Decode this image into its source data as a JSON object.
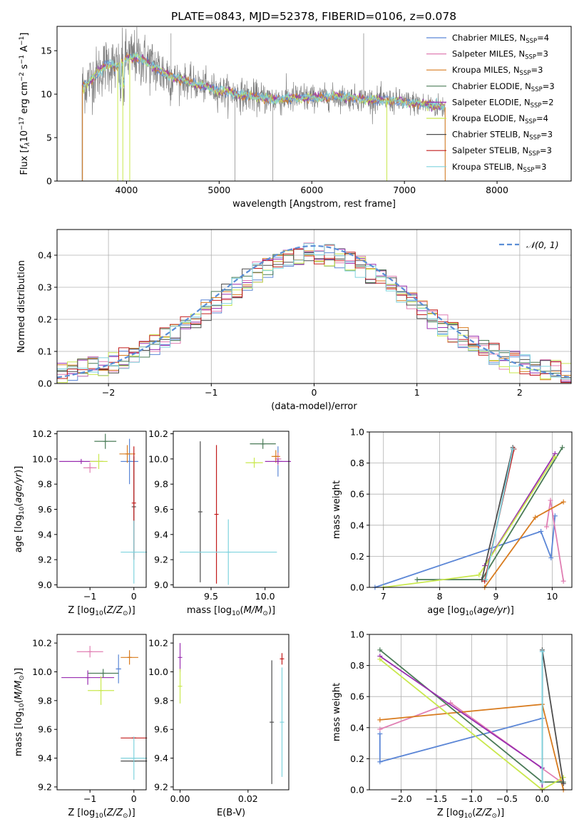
{
  "figure": {
    "title": "PLATE=0843, MJD=52378, FIBERID=0106, z=0.078"
  },
  "model_colors": {
    "Chabrier MILES": "#5b86d6",
    "Salpeter MILES": "#e07fb3",
    "Kroupa MILES": "#d87b1e",
    "Chabrier ELODIE": "#4a7b57",
    "Salpeter ELODIE": "#9a2fb0",
    "Kroupa ELODIE": "#c9e84e",
    "Chabrier STELIB": "#4d4d4d",
    "Salpeter STELIB": "#c21b1b",
    "Kroupa STELIB": "#7fd3de",
    "data": "#808080",
    "normal_fit": "#5b8ed6"
  },
  "chart_data": [
    {
      "id": "spectrum",
      "type": "line",
      "title": "PLATE=0843, MJD=52378, FIBERID=0106, z=0.078",
      "xlabel": "wavelength [Angstrom, rest frame]",
      "ylabel": "Flux [f_λ 10^-17 erg cm^-2 s^-1 A^-1]",
      "xlim": [
        3250,
        8800
      ],
      "ylim": [
        0,
        17.8
      ],
      "xticks": [
        4000,
        5000,
        6000,
        7000,
        8000
      ],
      "yticks": [
        0,
        5,
        10,
        15
      ],
      "grid": false,
      "legend_position": "top-right",
      "legend": [
        {
          "label": "Chabrier MILES, N",
          "sub": "SSP",
          "suffix": "=4",
          "model": "Chabrier MILES"
        },
        {
          "label": "Salpeter MILES, N",
          "sub": "SSP",
          "suffix": "=3",
          "model": "Salpeter MILES"
        },
        {
          "label": "Kroupa MILES, N",
          "sub": "SSP",
          "suffix": "=3",
          "model": "Kroupa MILES"
        },
        {
          "label": "Chabrier ELODIE, N",
          "sub": "SSP",
          "suffix": "=3",
          "model": "Chabrier ELODIE"
        },
        {
          "label": "Salpeter ELODIE, N",
          "sub": "SSP",
          "suffix": "=2",
          "model": "Salpeter ELODIE"
        },
        {
          "label": "Kroupa ELODIE, N",
          "sub": "SSP",
          "suffix": "=4",
          "model": "Kroupa ELODIE"
        },
        {
          "label": "Chabrier STELIB, N",
          "sub": "SSP",
          "suffix": "=3",
          "model": "Chabrier STELIB"
        },
        {
          "label": "Salpeter STELIB, N",
          "sub": "SSP",
          "suffix": "=3",
          "model": "Salpeter STELIB"
        },
        {
          "label": "Kroupa STELIB, N",
          "sub": "SSP",
          "suffix": "=3",
          "model": "Kroupa STELIB"
        }
      ],
      "continuum_knots": {
        "wavelength": [
          3520,
          3600,
          3700,
          3800,
          3900,
          4000,
          4100,
          4200,
          4300,
          4400,
          4500,
          4700,
          5000,
          5300,
          5600,
          6000,
          6300,
          6600,
          7000,
          7300,
          7440
        ],
        "flux": [
          10.8,
          11.5,
          12.5,
          13.6,
          13.0,
          14.2,
          14.3,
          13.8,
          13.2,
          12.4,
          12.0,
          11.3,
          10.4,
          9.8,
          9.4,
          9.6,
          9.7,
          9.4,
          9.1,
          8.7,
          8.5
        ]
      }
    },
    {
      "id": "residuals",
      "type": "step",
      "xlabel": "(data-model)/error",
      "ylabel": "Normed distribution",
      "xlim": [
        -2.5,
        2.5
      ],
      "ylim": [
        0,
        0.48
      ],
      "xticks": [
        -2,
        -1,
        0,
        1,
        2
      ],
      "yticks": [
        0.0,
        0.1,
        0.2,
        0.3,
        0.4
      ],
      "grid": true,
      "legend_position": "top-right",
      "legend_label": "𝒩(0, 1)",
      "bin_width": 0.1
    },
    {
      "id": "z_age",
      "type": "errorbar",
      "xlabel": "Z [log10(Z/Z⊙)]",
      "ylabel": "age [log10(age/yr)]",
      "xlim": [
        -1.75,
        0.28
      ],
      "ylim": [
        8.98,
        10.22
      ],
      "xticks": [
        -1,
        0
      ],
      "yticks": [
        9.0,
        9.2,
        9.4,
        9.6,
        9.8,
        10.0,
        10.2
      ],
      "points": [
        {
          "model": "Chabrier MILES",
          "x": -0.1,
          "xerr": 0.2,
          "y": 9.98,
          "yerr": 0.18
        },
        {
          "model": "Salpeter MILES",
          "x": -1.0,
          "xerr": 0.15,
          "y": 9.93,
          "yerr": 0.04
        },
        {
          "model": "Kroupa MILES",
          "x": -0.15,
          "xerr": 0.18,
          "y": 10.04,
          "yerr": 0.07
        },
        {
          "model": "Chabrier ELODIE",
          "x": -0.65,
          "xerr": 0.25,
          "y": 10.14,
          "yerr": 0.06
        },
        {
          "model": "Salpeter ELODIE",
          "x": -1.2,
          "xerr": 0.5,
          "y": 9.98,
          "yerr": 0.02
        },
        {
          "model": "Kroupa ELODIE",
          "x": -0.8,
          "xerr": 0.2,
          "y": 9.98,
          "yerr": 0.06
        },
        {
          "model": "Chabrier STELIB",
          "x": 0.0,
          "xerr": 0.0,
          "y": 9.62,
          "yerr": 0.4
        },
        {
          "model": "Salpeter STELIB",
          "x": 0.0,
          "xerr": 0.0,
          "y": 9.65,
          "yerr": 0.45
        },
        {
          "model": "Kroupa STELIB",
          "x": 0.0,
          "xerr": 0.3,
          "y": 9.26,
          "yerr": 0.25
        }
      ]
    },
    {
      "id": "mass_age",
      "type": "errorbar",
      "xlabel": "mass [log10(M/M⊙)]",
      "ylabel": "",
      "xlim": [
        9.15,
        10.22
      ],
      "ylim": [
        8.98,
        10.22
      ],
      "xticks": [
        9.5,
        10.0
      ],
      "yticks": [
        9.0,
        9.2,
        9.4,
        9.6,
        9.8,
        10.0,
        10.2
      ],
      "points": [
        {
          "model": "Chabrier MILES",
          "x": 10.12,
          "xerr": 0.04,
          "y": 9.98,
          "yerr": 0.12
        },
        {
          "model": "Salpeter MILES",
          "x": 10.12,
          "xerr": 0.03,
          "y": 10.0,
          "yerr": 0.05
        },
        {
          "model": "Kroupa MILES",
          "x": 10.1,
          "xerr": 0.04,
          "y": 10.02,
          "yerr": 0.05
        },
        {
          "model": "Chabrier ELODIE",
          "x": 9.98,
          "xerr": 0.12,
          "y": 10.12,
          "yerr": 0.04
        },
        {
          "model": "Salpeter ELODIE",
          "x": 10.12,
          "xerr": 0.12,
          "y": 9.98,
          "yerr": 0.02
        },
        {
          "model": "Kroupa ELODIE",
          "x": 9.9,
          "xerr": 0.08,
          "y": 9.97,
          "yerr": 0.04
        },
        {
          "model": "Chabrier STELIB",
          "x": 9.4,
          "xerr": 0.0,
          "y": 9.58,
          "yerr": 0.56
        },
        {
          "model": "Salpeter STELIB",
          "x": 9.55,
          "xerr": 0.0,
          "y": 9.56,
          "yerr": 0.55
        },
        {
          "model": "Kroupa STELIB",
          "x": 9.66,
          "xerr": 0.45,
          "y": 9.26,
          "yerr": 0.26
        }
      ]
    },
    {
      "id": "age_weight",
      "type": "line",
      "xlabel": "age [log10(age/yr)]",
      "ylabel": "mass weight",
      "xlim": [
        6.75,
        10.35
      ],
      "ylim": [
        0.0,
        1.0
      ],
      "xticks": [
        7,
        8,
        9,
        10
      ],
      "yticks": [
        0.0,
        0.2,
        0.4,
        0.6,
        0.8,
        1.0
      ],
      "grid": true,
      "series": [
        {
          "model": "Chabrier MILES",
          "x": [
            6.85,
            9.8,
            9.98,
            10.05
          ],
          "y": [
            0.0,
            0.36,
            0.19,
            0.46
          ]
        },
        {
          "model": "Salpeter MILES",
          "x": [
            9.9,
            9.97,
            10.2
          ],
          "y": [
            0.39,
            0.56,
            0.04
          ]
        },
        {
          "model": "Kroupa MILES",
          "x": [
            8.8,
            9.7,
            10.2
          ],
          "y": [
            0.0,
            0.45,
            0.55
          ]
        },
        {
          "model": "Chabrier ELODIE",
          "x": [
            7.6,
            8.75,
            10.18
          ],
          "y": [
            0.05,
            0.05,
            0.9
          ]
        },
        {
          "model": "Salpeter ELODIE",
          "x": [
            8.8,
            10.05
          ],
          "y": [
            0.14,
            0.86
          ]
        },
        {
          "model": "Kroupa ELODIE",
          "x": [
            7.0,
            8.7,
            10.05
          ],
          "y": [
            0.0,
            0.08,
            0.84
          ]
        },
        {
          "model": "Chabrier STELIB",
          "x": [
            8.75,
            9.3
          ],
          "y": [
            0.05,
            0.9
          ]
        },
        {
          "model": "Salpeter STELIB",
          "x": [
            8.8,
            9.32
          ],
          "y": [
            0.04,
            0.89
          ]
        },
        {
          "model": "Kroupa STELIB",
          "x": [
            8.82,
            9.3
          ],
          "y": [
            0.05,
            0.89
          ]
        }
      ]
    },
    {
      "id": "z_mass",
      "type": "errorbar",
      "xlabel": "Z [log10(Z/Z⊙)]",
      "ylabel": "mass [log10(M/M⊙)]",
      "xlim": [
        -1.75,
        0.28
      ],
      "ylim": [
        9.18,
        10.26
      ],
      "xticks": [
        -1,
        0
      ],
      "yticks": [
        9.2,
        9.4,
        9.6,
        9.8,
        10.0,
        10.2
      ],
      "points": [
        {
          "model": "Chabrier MILES",
          "x": -0.35,
          "xerr": 0.06,
          "y": 10.02,
          "yerr": 0.1
        },
        {
          "model": "Salpeter MILES",
          "x": -1.0,
          "xerr": 0.3,
          "y": 10.14,
          "yerr": 0.04
        },
        {
          "model": "Kroupa MILES",
          "x": -0.1,
          "xerr": 0.2,
          "y": 10.1,
          "yerr": 0.05
        },
        {
          "model": "Chabrier ELODIE",
          "x": -0.7,
          "xerr": 0.35,
          "y": 9.99,
          "yerr": 0.03
        },
        {
          "model": "Salpeter ELODIE",
          "x": -1.05,
          "xerr": 0.6,
          "y": 9.96,
          "yerr": 0.05
        },
        {
          "model": "Kroupa ELODIE",
          "x": -0.75,
          "xerr": 0.3,
          "y": 9.87,
          "yerr": 0.1
        },
        {
          "model": "Chabrier STELIB",
          "x": 0.0,
          "xerr": 0.3,
          "y": 9.38,
          "yerr": 0.0
        },
        {
          "model": "Salpeter STELIB",
          "x": 0.0,
          "xerr": 0.3,
          "y": 9.54,
          "yerr": 0.0
        },
        {
          "model": "Kroupa STELIB",
          "x": 0.0,
          "xerr": 0.3,
          "y": 9.4,
          "yerr": 0.15
        }
      ]
    },
    {
      "id": "ebv_mass",
      "type": "errorbar",
      "xlabel": "E(B-V)",
      "ylabel": "",
      "xlim": [
        -0.002,
        0.032
      ],
      "ylim": [
        9.18,
        10.26
      ],
      "xticks": [
        0.0,
        0.02
      ],
      "yticks": [
        9.2,
        9.4,
        9.6,
        9.8,
        10.0,
        10.2
      ],
      "points": [
        {
          "model": "Salpeter ELODIE",
          "x": 0.0,
          "xerr": 0.0,
          "y": 10.1,
          "yerr": 0.1
        },
        {
          "model": "Kroupa ELODIE",
          "x": 0.0,
          "xerr": 0.0,
          "y": 9.9,
          "yerr": 0.12
        },
        {
          "model": "Chabrier STELIB",
          "x": 0.027,
          "xerr": 0.0,
          "y": 9.65,
          "yerr": 0.43
        },
        {
          "model": "Salpeter STELIB",
          "x": 0.03,
          "xerr": 0.0,
          "y": 10.09,
          "yerr": 0.04
        },
        {
          "model": "Kroupa STELIB",
          "x": 0.03,
          "xerr": 0.0,
          "y": 9.65,
          "yerr": 0.38
        }
      ]
    },
    {
      "id": "z_weight",
      "type": "line",
      "xlabel": "Z [log10(Z/Z⊙)]",
      "ylabel": "mass weight",
      "xlim": [
        -2.45,
        0.42
      ],
      "ylim": [
        0.0,
        1.0
      ],
      "xticks": [
        -2.0,
        -1.5,
        -1.0,
        -0.5,
        0.0
      ],
      "yticks": [
        0.0,
        0.2,
        0.4,
        0.6,
        0.8,
        1.0
      ],
      "grid": true,
      "series": [
        {
          "model": "Chabrier MILES",
          "x": [
            -2.3,
            -2.3,
            0.0,
            0.0
          ],
          "y": [
            0.36,
            0.18,
            0.46,
            0.89
          ]
        },
        {
          "model": "Salpeter MILES",
          "x": [
            -2.3,
            -1.3,
            0.3
          ],
          "y": [
            0.39,
            0.56,
            0.04
          ]
        },
        {
          "model": "Kroupa MILES",
          "x": [
            -2.3,
            0.0,
            0.3
          ],
          "y": [
            0.45,
            0.55,
            0.0
          ]
        },
        {
          "model": "Chabrier ELODIE",
          "x": [
            -2.3,
            0.0,
            0.3
          ],
          "y": [
            0.9,
            0.05,
            0.05
          ]
        },
        {
          "model": "Salpeter ELODIE",
          "x": [
            -2.3,
            0.0,
            0.0
          ],
          "y": [
            0.86,
            0.14,
            0.0
          ]
        },
        {
          "model": "Kroupa ELODIE",
          "x": [
            -2.3,
            0.0,
            0.3
          ],
          "y": [
            0.84,
            0.0,
            0.08
          ]
        },
        {
          "model": "Chabrier STELIB",
          "x": [
            0.0,
            0.0,
            0.3
          ],
          "y": [
            0.05,
            0.9,
            0.04
          ]
        },
        {
          "model": "Kroupa STELIB",
          "x": [
            0.0,
            0.0
          ],
          "y": [
            0.05,
            0.89
          ]
        }
      ]
    }
  ]
}
